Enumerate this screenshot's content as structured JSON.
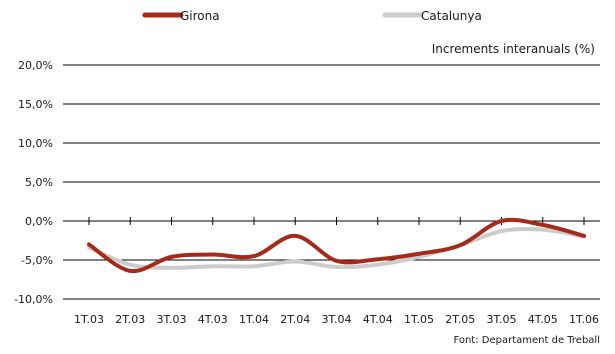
{
  "chart_data": {
    "type": "line",
    "title": "",
    "unit_label": "Increments interanuals (%)",
    "source": "Font: Departament de Treball",
    "categories": [
      "1T.03",
      "2T.03",
      "3T.03",
      "4T.03",
      "1T.04",
      "2T.04",
      "3T.04",
      "4T.04",
      "1T.05",
      "2T.05",
      "3T.05",
      "4T.05",
      "1T.06"
    ],
    "series": [
      {
        "name": "Girona",
        "color": "#a52a1a",
        "values": [
          -3.0,
          -6.4,
          -4.6,
          -4.3,
          -4.5,
          -1.9,
          -5.1,
          -4.9,
          -4.2,
          -3.1,
          0.0,
          -0.5,
          -1.9
        ]
      },
      {
        "name": "Catalunya",
        "color": "#cccccc",
        "values": [
          -3.4,
          -5.6,
          -6.0,
          -5.8,
          -5.8,
          -5.2,
          -5.9,
          -5.6,
          -4.6,
          -3.1,
          -1.3,
          -1.1,
          -2.0
        ]
      }
    ],
    "y_ticks": [
      "20,0%",
      "15,0%",
      "10,0%",
      "5,0%",
      "0,0%",
      "-5,0%",
      "-10,0%"
    ],
    "y_tick_values": [
      20,
      15,
      10,
      5,
      0,
      -5,
      -10
    ],
    "ylim": [
      -10,
      20
    ],
    "grid": "horizontal",
    "legend_position": "top"
  }
}
